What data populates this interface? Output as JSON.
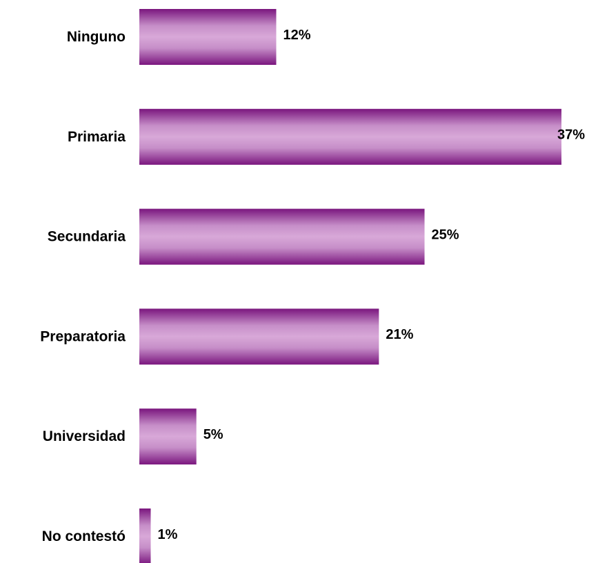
{
  "chart_data": {
    "type": "bar",
    "orientation": "horizontal",
    "categories": [
      "Ninguno",
      "Primaria",
      "Secundaria",
      "Preparatoria",
      "Universidad",
      "No contestó"
    ],
    "values": [
      12,
      37,
      25,
      21,
      5,
      1
    ],
    "value_labels": [
      "12%",
      "37%",
      "25%",
      "21%",
      "5%",
      "1%"
    ],
    "color": "#d8a8d8"
  }
}
